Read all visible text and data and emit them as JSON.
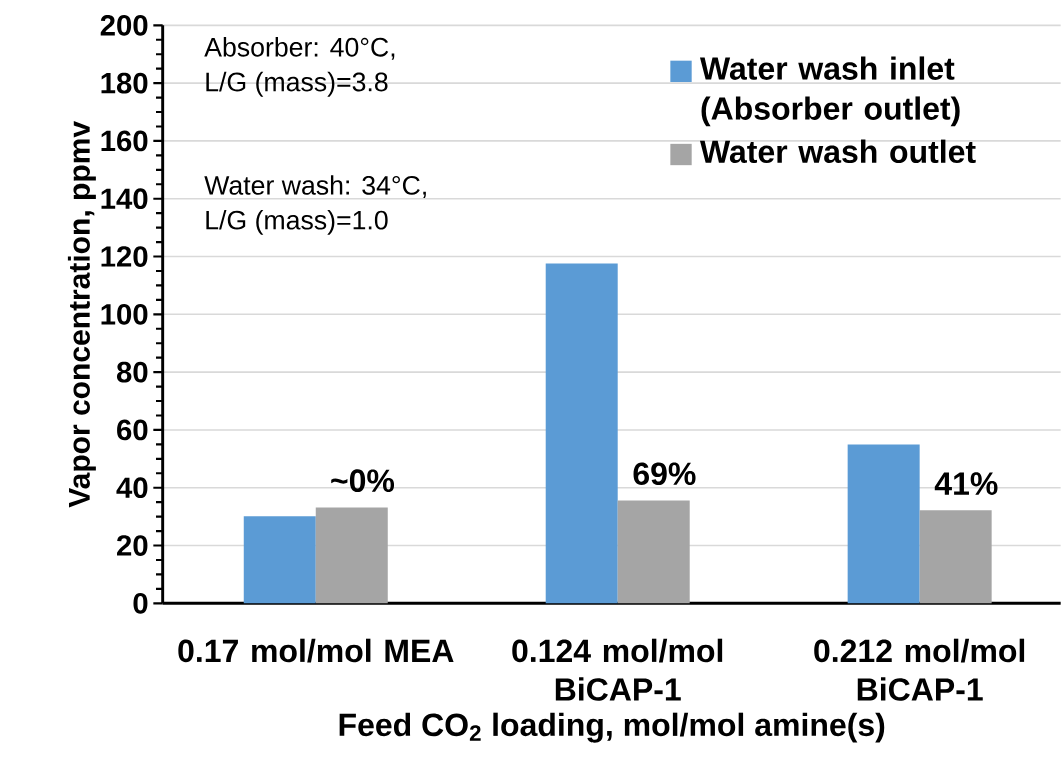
{
  "chart_data": {
    "type": "bar",
    "xlabel": "Feed CO$_{2}$ loading, mol/mol amine(s)",
    "ylabel": "Vapor concentration, ppmv",
    "categories": [
      "0.17 mol/mol MEA",
      "0.124 mol/mol BiCAP-1",
      "0.212 mol/mol BiCAP-1"
    ],
    "series": [
      {
        "name": "Water wash inlet (Absorber outlet)",
        "color": "#5b9bd5",
        "values": [
          30.1,
          117.6,
          55
        ]
      },
      {
        "name": "Water wash outlet",
        "color": "#a5a5a5",
        "values": [
          33.2,
          35.6,
          32.2
        ]
      }
    ],
    "ylim": [
      0,
      200
    ],
    "yticks": [
      0,
      20,
      40,
      60,
      80,
      100,
      120,
      140,
      160,
      180,
      200
    ],
    "grid": "y",
    "legend": "top right",
    "annotations": [
      "Absorber: 40°C,",
      "L/G (mass)=3.8",
      "Water wash: 34°C,",
      "L/G (mass)=1.0",
      {
        "text": "~0%",
        "x": "0.17 mol/mol MEA",
        "y": 33.2
      },
      {
        "text": "69%",
        "x": "0.124 mol/mol BiCAP-1",
        "y": 35.6
      },
      {
        "text": "41%",
        "x": "0.212 mol/mol BiCAP-1",
        "y": 32.2
      }
    ]
  }
}
